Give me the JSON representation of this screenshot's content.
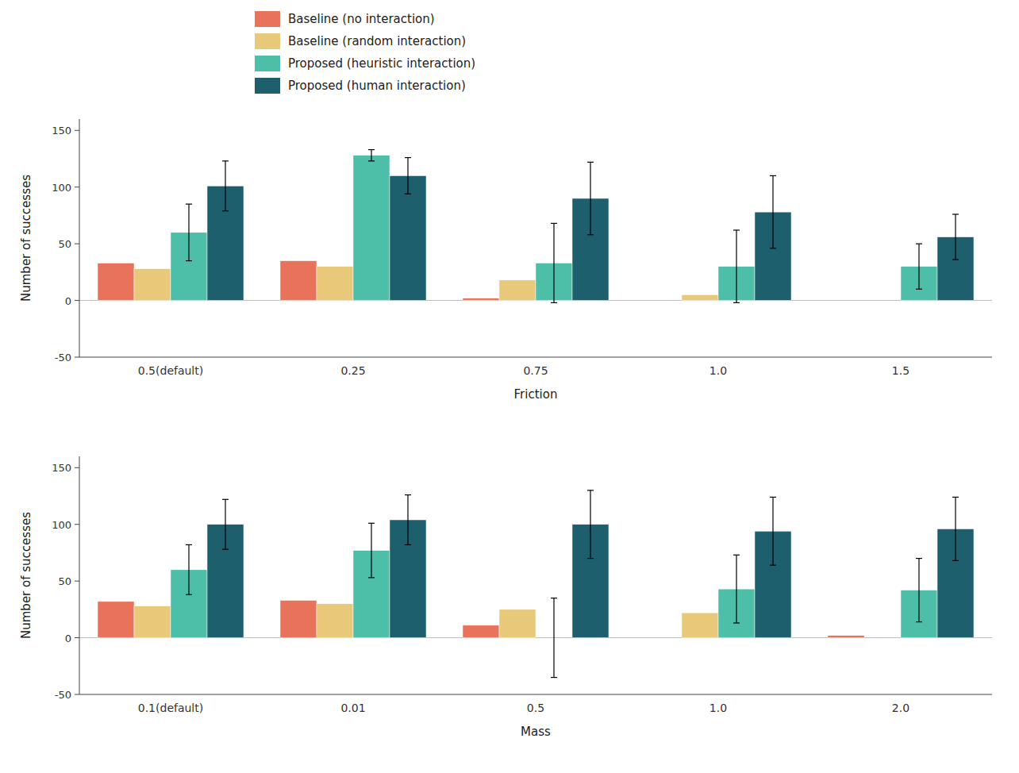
{
  "chart_data": [
    {
      "type": "bar",
      "categories": [
        "0.5(default)",
        "0.25",
        "0.75",
        "1.0",
        "1.5"
      ],
      "series": [
        {
          "name": "Baseline (no interaction)",
          "color": "#E8735A",
          "values": [
            33,
            35,
            2,
            0,
            0
          ]
        },
        {
          "name": "Baseline (random interaction)",
          "color": "#E8C97A",
          "values": [
            28,
            30,
            18,
            5,
            0
          ]
        },
        {
          "name": "Proposed (heuristic interaction)",
          "color": "#4DBFA8",
          "values": [
            60,
            128,
            33,
            30,
            30
          ],
          "errors": [
            25,
            5,
            35,
            32,
            20
          ]
        },
        {
          "name": "Proposed (human interaction)",
          "color": "#1E5F6E",
          "values": [
            101,
            110,
            90,
            78,
            56
          ],
          "errors": [
            22,
            16,
            32,
            32,
            20
          ]
        }
      ],
      "x_label": "Friction",
      "y_label": "Number of successes",
      "ylim": [
        -50,
        160
      ],
      "yticks": [
        -50,
        0,
        50,
        100,
        150
      ]
    },
    {
      "type": "bar",
      "categories": [
        "0.1(default)",
        "0.01",
        "0.5",
        "1.0",
        "2.0"
      ],
      "series": [
        {
          "name": "Baseline (no interaction)",
          "color": "#E8735A",
          "values": [
            32,
            33,
            11,
            0,
            2
          ]
        },
        {
          "name": "Baseline (random interaction)",
          "color": "#E8C97A",
          "values": [
            28,
            30,
            25,
            22,
            0
          ]
        },
        {
          "name": "Proposed (heuristic interaction)",
          "color": "#4DBFA8",
          "values": [
            60,
            77,
            0,
            43,
            42
          ],
          "errors": [
            22,
            24,
            35,
            30,
            28
          ]
        },
        {
          "name": "Proposed (human interaction)",
          "color": "#1E5F6E",
          "values": [
            100,
            104,
            100,
            94,
            96
          ],
          "errors": [
            22,
            22,
            30,
            30,
            28
          ]
        }
      ],
      "x_label": "Mass",
      "y_label": "Number of successes",
      "ylim": [
        -50,
        160
      ],
      "yticks": [
        -50,
        0,
        50,
        100,
        150
      ]
    }
  ]
}
